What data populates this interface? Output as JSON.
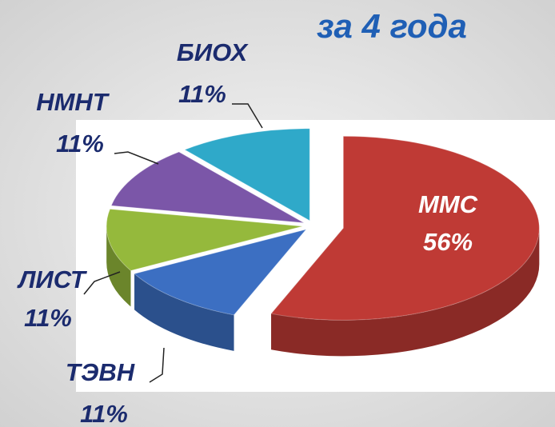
{
  "chart_data": {
    "type": "pie",
    "title": "за 4 года",
    "categories": [
      "ММС",
      "ТЭВН",
      "ЛИСТ",
      "НМНТ",
      "БИОХ"
    ],
    "values": [
      56,
      11,
      11,
      11,
      11
    ],
    "value_labels": [
      "56%",
      "11%",
      "11%",
      "11%",
      "11%"
    ],
    "colors": [
      "#bf3a35",
      "#3c6fc2",
      "#95b93c",
      "#7b56a8",
      "#2fa9c9"
    ]
  }
}
